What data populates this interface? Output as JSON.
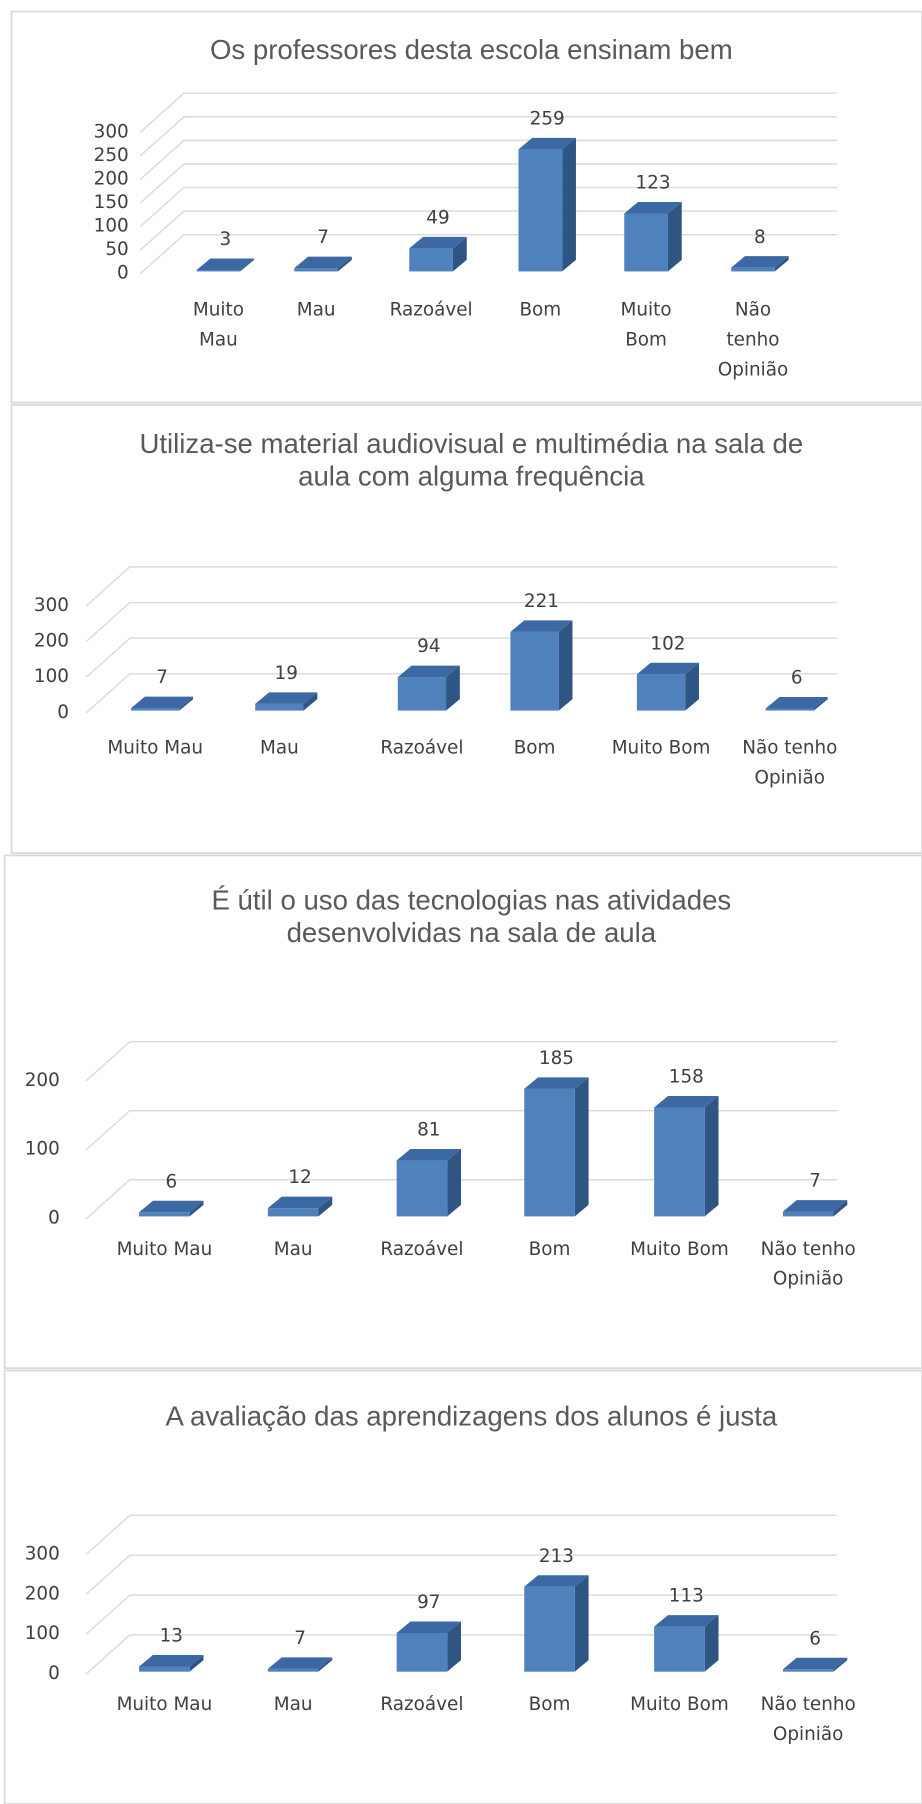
{
  "chart_data": [
    {
      "type": "bar",
      "title": "Os professores desta escola ensinam bem",
      "categories": [
        "Muito Mau",
        "Mau",
        "Razoável",
        "Bom",
        "Muito Bom",
        "Não tenho Opinião"
      ],
      "values": [
        3,
        7,
        49,
        259,
        123,
        8
      ],
      "color": "#4f81bd",
      "ylim": [
        0,
        300
      ],
      "yticks": [
        0,
        50,
        100,
        150,
        200,
        250,
        300
      ],
      "grid": true
    },
    {
      "type": "bar",
      "title": "Utiliza-se material audiovisual e multimédia na sala de aula com alguma frequência",
      "categories": [
        "Muito Mau",
        "Mau",
        "Razoável",
        "Bom",
        "Muito Bom",
        "Não tenho Opinião"
      ],
      "values": [
        7,
        19,
        94,
        221,
        102,
        6
      ],
      "color": "#4f81bd",
      "ylim": [
        0,
        300
      ],
      "yticks": [
        0,
        100,
        200,
        300
      ],
      "grid": true
    },
    {
      "type": "bar",
      "title": "É útil o uso das tecnologias nas atividades desenvolvidas na sala de aula",
      "categories": [
        "Muito Mau",
        "Mau",
        "Razoável",
        "Bom",
        "Muito Bom",
        "Não tenho Opinião"
      ],
      "values": [
        6,
        12,
        81,
        185,
        158,
        7
      ],
      "color": "#4f81bd",
      "ylim": [
        0,
        200
      ],
      "yticks": [
        0,
        100,
        200
      ],
      "grid": true
    },
    {
      "type": "bar",
      "title": "A avaliação das aprendizagens dos alunos é justa",
      "categories": [
        "Muito Mau",
        "Mau",
        "Razoável",
        "Bom",
        "Muito Bom",
        "Não tenho Opinião"
      ],
      "values": [
        13,
        7,
        97,
        213,
        113,
        6
      ],
      "color": "#4f81bd",
      "ylim": [
        0,
        300
      ],
      "yticks": [
        0,
        100,
        200,
        300
      ],
      "grid": true
    }
  ]
}
